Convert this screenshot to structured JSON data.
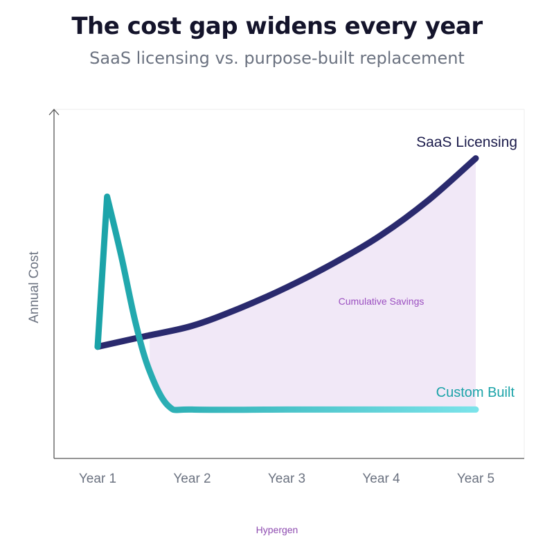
{
  "header": {
    "title": "The cost gap widens every year",
    "subtitle": "SaaS licensing vs. purpose-built replacement"
  },
  "footer": {
    "brand": "Hypergen"
  },
  "colors": {
    "saas": "#2a2a6e",
    "custom_start": "#1aa3a8",
    "custom_end": "#7be3ea",
    "savings_fill": "#efe5f6",
    "savings_label": "#9b4fc0",
    "axis": "#555555",
    "tick": "#6b7280"
  },
  "chart_data": {
    "type": "line",
    "title": "The cost gap widens every year",
    "subtitle": "SaaS licensing vs. purpose-built replacement",
    "xlabel": "",
    "ylabel": "Annual Cost",
    "categories": [
      "Year 1",
      "Year 2",
      "Year 3",
      "Year 4",
      "Year 5"
    ],
    "ylim": [
      0,
      100
    ],
    "grid": false,
    "series": [
      {
        "name": "SaaS Licensing",
        "x": [
          1,
          1.5,
          2,
          2.5,
          3,
          3.5,
          4,
          4.5,
          5
        ],
        "values": [
          32,
          35,
          38,
          43,
          49,
          56,
          64,
          74,
          86
        ]
      },
      {
        "name": "Custom Built",
        "x": [
          1,
          1.1,
          1.25,
          1.4,
          1.55,
          1.75,
          2,
          3,
          4,
          5
        ],
        "values": [
          32,
          75,
          58,
          39,
          25,
          15,
          14,
          14,
          14,
          14
        ]
      }
    ],
    "annotations": [
      {
        "text": "Cumulative Savings",
        "x": 4.0,
        "y": 45
      }
    ]
  }
}
